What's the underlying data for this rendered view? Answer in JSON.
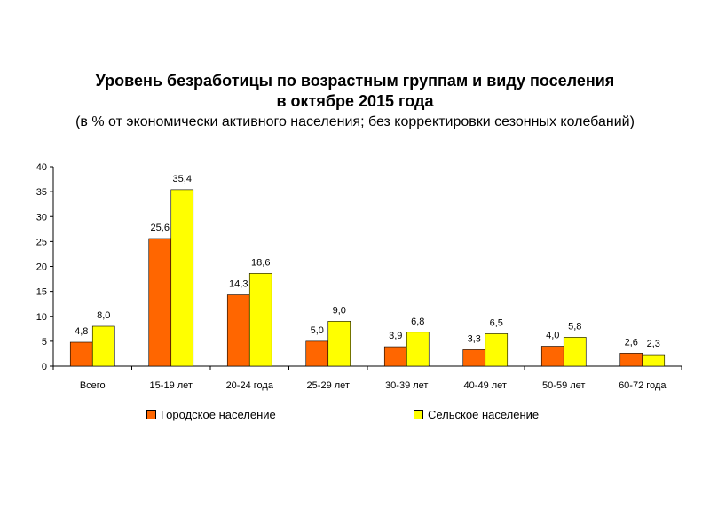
{
  "header": {
    "title_line1": "Уровень безработицы по возрастным группам и виду поселения",
    "title_line2": "в октябре 2015 года",
    "subtitle": "(в % от экономически активного населения; без корректировки сезонных колебаний)"
  },
  "colors": {
    "urban": "#FF6600",
    "rural": "#FFFF00",
    "axis": "#000000",
    "bar_edge": "#000000"
  },
  "chart_data": {
    "type": "bar",
    "title": "Уровень безработицы по возрастным группам и виду поселения в октябре 2015 года",
    "subtitle": "(в % от экономически активного населения; без корректировки сезонных колебаний)",
    "categories": [
      "Всего",
      "15-19 лет",
      "20-24 года",
      "25-29 лет",
      "30-39 лет",
      "40-49 лет",
      "50-59 лет",
      "60-72 года"
    ],
    "series": [
      {
        "name": "Городское население",
        "values": [
          4.8,
          25.6,
          14.3,
          5.0,
          3.9,
          3.3,
          4.0,
          2.6
        ],
        "labels": [
          "4,8",
          "25,6",
          "14,3",
          "5,0",
          "3,9",
          "3,3",
          "4,0",
          "2,6"
        ]
      },
      {
        "name": "Сельское население",
        "values": [
          8.0,
          35.4,
          18.6,
          9.0,
          6.8,
          6.5,
          5.8,
          2.3
        ],
        "labels": [
          "8,0",
          "35,4",
          "18,6",
          "9,0",
          "6,8",
          "6,5",
          "5,8",
          "2,3"
        ]
      }
    ],
    "yticks": [
      "0",
      "5",
      "10",
      "15",
      "20",
      "25",
      "30",
      "35",
      "40"
    ],
    "ylim": [
      0,
      40
    ],
    "grid": false,
    "legend_position": "bottom"
  }
}
